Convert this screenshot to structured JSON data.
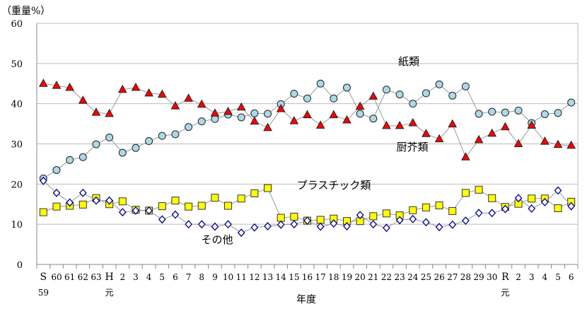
{
  "chart_data": {
    "type": "line",
    "ylabel": "（重量%）",
    "xlabel": "年度",
    "ylim": [
      0,
      60
    ],
    "yticks": [
      0,
      10,
      20,
      30,
      40,
      50,
      60
    ],
    "grid": true,
    "categories": [
      [
        "S",
        "59"
      ],
      [
        "60"
      ],
      [
        "61"
      ],
      [
        "62"
      ],
      [
        "63"
      ],
      [
        "H",
        "元"
      ],
      [
        "2"
      ],
      [
        "3"
      ],
      [
        "4"
      ],
      [
        "5"
      ],
      [
        "6"
      ],
      [
        "7"
      ],
      [
        "8"
      ],
      [
        "9"
      ],
      [
        "10"
      ],
      [
        "11"
      ],
      [
        "12"
      ],
      [
        "13"
      ],
      [
        "14"
      ],
      [
        "15"
      ],
      [
        "16"
      ],
      [
        "17"
      ],
      [
        "18"
      ],
      [
        "19"
      ],
      [
        "20"
      ],
      [
        "21"
      ],
      [
        "22"
      ],
      [
        "23"
      ],
      [
        "24"
      ],
      [
        "25"
      ],
      [
        "26"
      ],
      [
        "27"
      ],
      [
        "28"
      ],
      [
        "29"
      ],
      [
        "30"
      ],
      [
        "R",
        "元"
      ],
      [
        "2"
      ],
      [
        "3"
      ],
      [
        "4"
      ],
      [
        "5"
      ],
      [
        "6"
      ]
    ],
    "series": [
      {
        "name": "紙類",
        "marker": "circle",
        "color": "#add8e6",
        "values": [
          21.4,
          23.5,
          26,
          26.7,
          29.9,
          31.6,
          27.8,
          29,
          30.7,
          32,
          32.4,
          34.2,
          35.6,
          36.2,
          37.3,
          36.6,
          37.6,
          37.5,
          39.9,
          42.5,
          41.3,
          45,
          41.3,
          44,
          37.5,
          36.3,
          43.5,
          42.3,
          40,
          42.6,
          44.8,
          42,
          44.3,
          37.5,
          38,
          37.8,
          38.3,
          35.2,
          37.4,
          37.7,
          40.3
        ],
        "label_at": [
          575,
          86
        ]
      },
      {
        "name": "厨芥類",
        "marker": "triangle",
        "color": "#ff0000",
        "values": [
          45,
          44.5,
          44,
          40.8,
          37.8,
          37.5,
          43.5,
          44,
          42.6,
          42.3,
          39.4,
          41.3,
          39.8,
          37.6,
          38,
          39.1,
          35.6,
          34,
          38.7,
          35.7,
          37.2,
          34.6,
          37.2,
          35.9,
          39.3,
          41.8,
          34.5,
          34.5,
          35.2,
          32.5,
          31.2,
          34.9,
          26.7,
          31,
          32.6,
          34.2,
          30,
          34.6,
          30.6,
          29.8,
          29.6
        ]
      },
      {
        "name": "プラスチック類",
        "marker": "square",
        "color": "#ffff00",
        "values": [
          13,
          14.4,
          14.6,
          14.9,
          16.5,
          15,
          15.7,
          13.6,
          13.4,
          14.5,
          15.9,
          14.4,
          14.6,
          16.6,
          14.6,
          16.4,
          17.7,
          19,
          11.6,
          11.9,
          10.9,
          11.1,
          11.4,
          10.8,
          10.8,
          12,
          12.7,
          12.2,
          13.5,
          14.2,
          14.7,
          13.3,
          17.8,
          18.6,
          16.5,
          14.3,
          15.1,
          16.4,
          16.4,
          14,
          15.6
        ]
      },
      {
        "name": "その他",
        "marker": "diamond",
        "color": "#00008b",
        "values": [
          20.8,
          17.8,
          15.4,
          17.8,
          15.9,
          15.9,
          13,
          13.4,
          13.4,
          11.2,
          12.4,
          10,
          10,
          9.4,
          10,
          7.9,
          9.2,
          9.5,
          9.9,
          10,
          10.9,
          9.4,
          10.2,
          9.5,
          12.3,
          10,
          9.1,
          11,
          11.3,
          10.5,
          9.3,
          9.9,
          10.9,
          12.8,
          12.8,
          13.8,
          16.5,
          13.9,
          15.5,
          18.4,
          14.5
        ]
      }
    ]
  }
}
